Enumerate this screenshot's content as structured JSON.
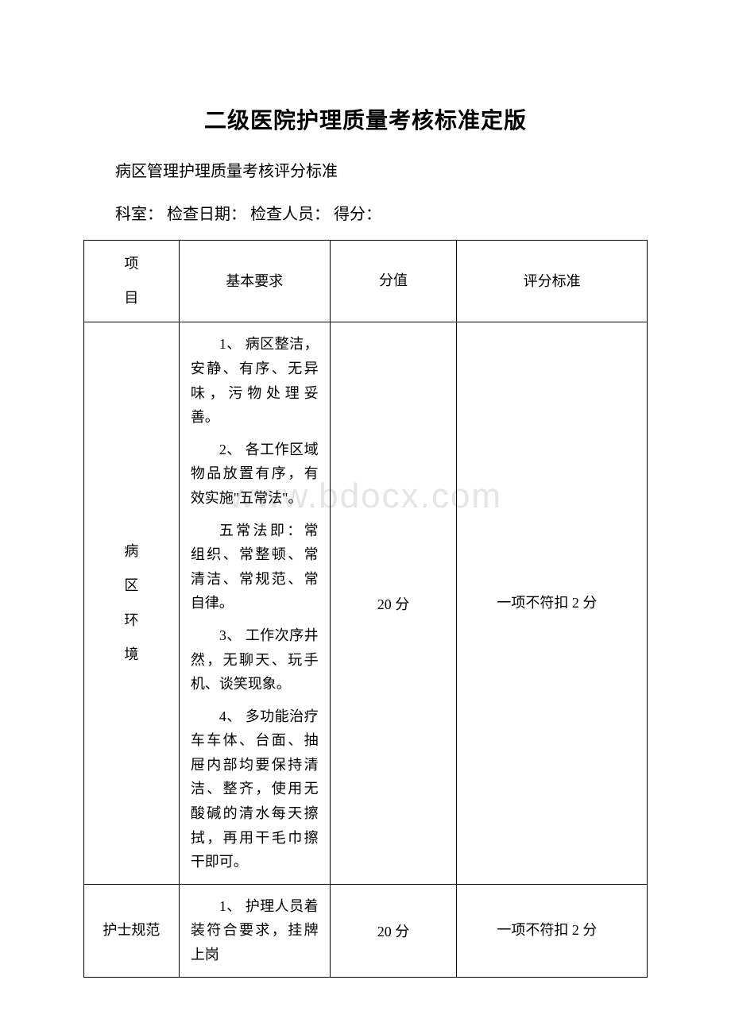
{
  "watermark": "www.bdocx.com",
  "title": "二级医院护理质量考核标准定版",
  "subtitle": "病区管理护理质量考核评分标准",
  "infoLine": "科室：  检查日期：  检查人员：  得分：",
  "table": {
    "headers": {
      "category": "项目",
      "requirement": "基本要求",
      "score": "分值",
      "standard": "评分标准"
    },
    "rows": [
      {
        "category": "病区环境",
        "requirements": [
          "1、 病区整洁，安静、有序、无异味，污物处理妥善。",
          "2、 各工作区域物品放置有序，有效实施\"五常法\"。",
          "五常法即：常组织、常整顿、常清洁、常规范、常自律。",
          "3、 工作次序井然，无聊天、玩手机、谈笑现象。",
          "4、 多功能治疗车车体、台面、抽屉内部均要保持清洁、整齐，使用无酸碱的清水每天擦拭，再用干毛巾擦干即可。"
        ],
        "score": "20 分",
        "standard": "一项不符扣 2 分"
      },
      {
        "category": "护士规范",
        "requirements": [
          "1、 护理人员着装符合要求，挂牌上岗"
        ],
        "score": "20 分",
        "standard": "一项不符扣 2 分"
      }
    ]
  }
}
